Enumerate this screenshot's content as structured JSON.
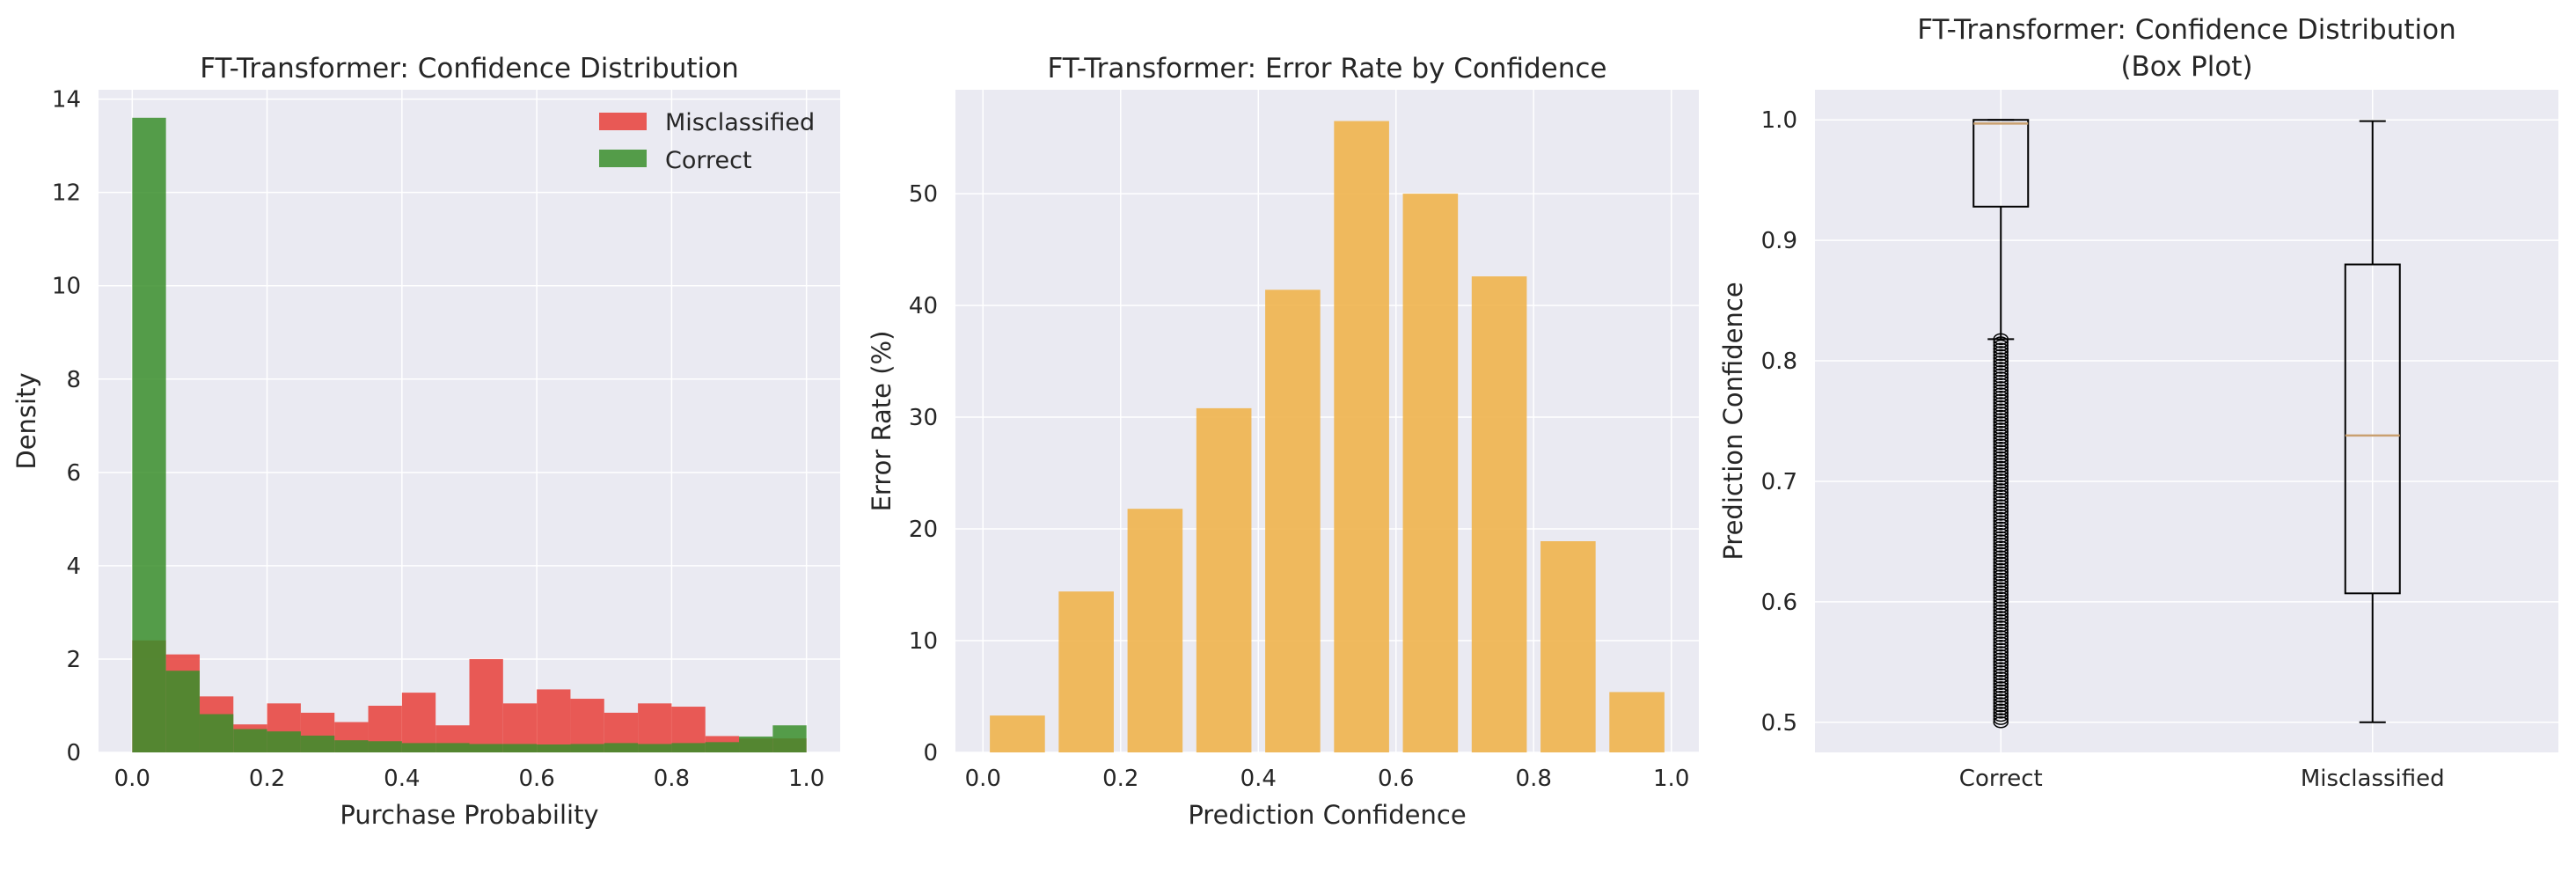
{
  "chart_data": [
    {
      "type": "histogram",
      "title": "FT-Transformer: Confidence Distribution",
      "xlabel": "Purchase Probability",
      "ylabel": "Density",
      "xlim": [
        -0.05,
        1.05
      ],
      "ylim": [
        0,
        14.2
      ],
      "xticks": [
        0.0,
        0.2,
        0.4,
        0.6,
        0.8,
        1.0
      ],
      "xtick_labels": [
        "0.0",
        "0.2",
        "0.4",
        "0.6",
        "0.8",
        "1.0"
      ],
      "yticks": [
        0,
        2,
        4,
        6,
        8,
        10,
        12,
        14
      ],
      "ytick_labels": [
        "0",
        "2",
        "4",
        "6",
        "8",
        "10",
        "12",
        "14"
      ],
      "grid": true,
      "legend_position": "top-right",
      "bin_edges": [
        0.0,
        0.05,
        0.1,
        0.15,
        0.2,
        0.25,
        0.3,
        0.35,
        0.4,
        0.45,
        0.5,
        0.55,
        0.6,
        0.65,
        0.7,
        0.75,
        0.8,
        0.85,
        0.9,
        0.95,
        1.0
      ],
      "series": [
        {
          "name": "Misclassified",
          "color": "#e8403a",
          "values": [
            2.4,
            2.1,
            1.2,
            0.6,
            1.05,
            0.85,
            0.65,
            1.0,
            1.28,
            0.58,
            2.0,
            1.05,
            1.35,
            1.15,
            0.85,
            1.05,
            0.98,
            0.35,
            0.3,
            0.3
          ]
        },
        {
          "name": "Correct",
          "color": "#3a8e2c",
          "values": [
            13.6,
            1.75,
            0.82,
            0.5,
            0.45,
            0.36,
            0.26,
            0.24,
            0.2,
            0.2,
            0.18,
            0.18,
            0.17,
            0.18,
            0.2,
            0.18,
            0.2,
            0.22,
            0.34,
            0.58
          ]
        }
      ]
    },
    {
      "type": "bar",
      "title": "FT-Transformer: Error Rate by Confidence",
      "xlabel": "Prediction Confidence",
      "ylabel": "Error Rate (%)",
      "xlim": [
        -0.04,
        1.04
      ],
      "ylim": [
        0,
        59.3
      ],
      "xticks": [
        0.0,
        0.2,
        0.4,
        0.6,
        0.8,
        1.0
      ],
      "xtick_labels": [
        "0.0",
        "0.2",
        "0.4",
        "0.6",
        "0.8",
        "1.0"
      ],
      "yticks": [
        0,
        10,
        20,
        30,
        40,
        50
      ],
      "ytick_labels": [
        "0",
        "10",
        "20",
        "30",
        "40",
        "50"
      ],
      "grid": true,
      "color": "#f0b44c",
      "bar_width": 0.08,
      "x": [
        0.05,
        0.15,
        0.25,
        0.35,
        0.45,
        0.55,
        0.65,
        0.75,
        0.85,
        0.95
      ],
      "values": [
        3.3,
        14.4,
        21.8,
        30.8,
        41.4,
        56.5,
        50.0,
        42.6,
        18.9,
        5.4
      ]
    },
    {
      "type": "box",
      "title": "FT-Transformer: Confidence Distribution",
      "subtitle": "(Box Plot)",
      "xlabel": "",
      "ylabel": "Prediction Confidence",
      "ylim": [
        0.475,
        1.025
      ],
      "yticks": [
        0.5,
        0.6,
        0.7,
        0.8,
        0.9,
        1.0
      ],
      "ytick_labels": [
        "0.5",
        "0.6",
        "0.7",
        "0.8",
        "0.9",
        "1.0"
      ],
      "grid": true,
      "categories": [
        "Correct",
        "Misclassified"
      ],
      "boxes": [
        {
          "name": "Correct",
          "whisker_low": 0.818,
          "q1": 0.928,
          "median": 0.997,
          "q3": 1.0,
          "whisker_high": 1.0,
          "outliers_range": [
            0.5,
            0.818
          ]
        },
        {
          "name": "Misclassified",
          "whisker_low": 0.5,
          "q1": 0.607,
          "median": 0.738,
          "q3": 0.88,
          "whisker_high": 0.999
        }
      ]
    }
  ]
}
